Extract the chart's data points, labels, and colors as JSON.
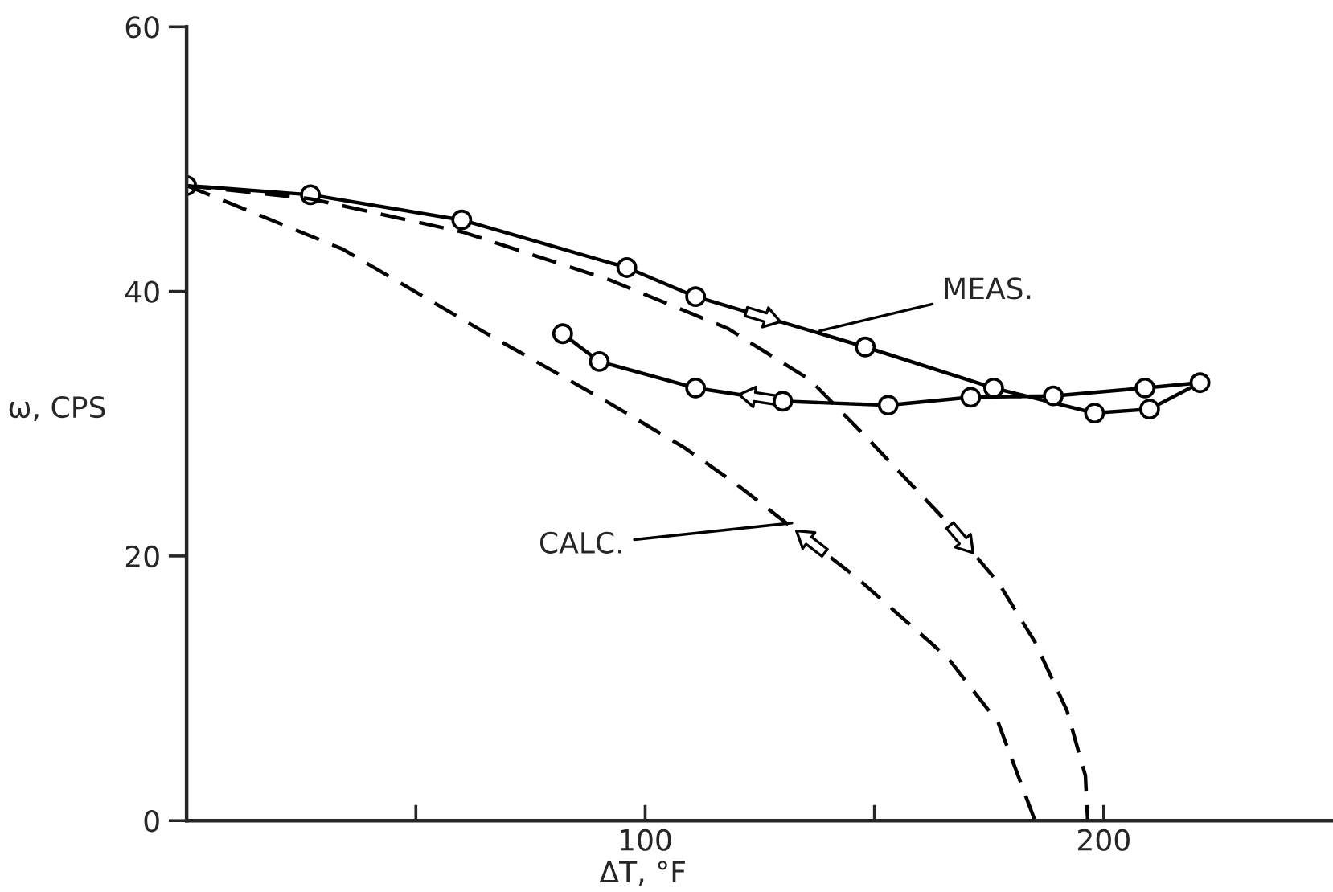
{
  "chart_data": {
    "type": "line",
    "xlabel": "ΔT, °F",
    "ylabel": "ω, CPS",
    "xlim": [
      0,
      250
    ],
    "ylim": [
      0,
      60
    ],
    "xticks": [
      {
        "value": 0,
        "label": null
      },
      {
        "value": 50,
        "label": null
      },
      100,
      {
        "value": 150,
        "label": null
      },
      200
    ],
    "yticks": [
      0,
      20,
      40,
      60
    ],
    "grid": false,
    "legend": false,
    "series": [
      {
        "color": "#000000",
        "marker": "circle",
        "line_style": "solid",
        "x": [
          0,
          27,
          60,
          96,
          111,
          148,
          176,
          198,
          210,
          221,
          209,
          189,
          171,
          153,
          130,
          111,
          90,
          82
        ],
        "values": [
          48,
          47.3,
          45.4,
          41.8,
          39.6,
          35.8,
          32.7,
          30.8,
          31.1,
          33.1,
          32.7,
          32.1,
          32,
          31.4,
          31.7,
          32.7,
          34.7,
          36.8
        ]
      },
      {
        "color": "#000000",
        "marker": "none",
        "line_style": "dashed",
        "x": [
          0,
          27,
          60,
          92,
          118,
          136,
          149,
          166,
          177,
          185,
          192,
          196,
          196.5
        ],
        "values": [
          48,
          47,
          44.5,
          40.9,
          37.2,
          33.3,
          28.7,
          22.5,
          18,
          13.5,
          8.3,
          3.4,
          0
        ]
      },
      {
        "color": "#000000",
        "marker": "none",
        "line_style": "dashed",
        "x": [
          0,
          34,
          64,
          91,
          108.5,
          120,
          146,
          166,
          177,
          185
        ],
        "values": [
          48,
          43.2,
          37.1,
          31.8,
          28.2,
          25.4,
          18.4,
          12.3,
          7.4,
          0
        ]
      }
    ],
    "annotations": [
      {
        "text": "MEAS.",
        "x": 138,
        "y": 37
      },
      {
        "text": "CALC.",
        "x": 132,
        "y": 22.5
      }
    ]
  }
}
